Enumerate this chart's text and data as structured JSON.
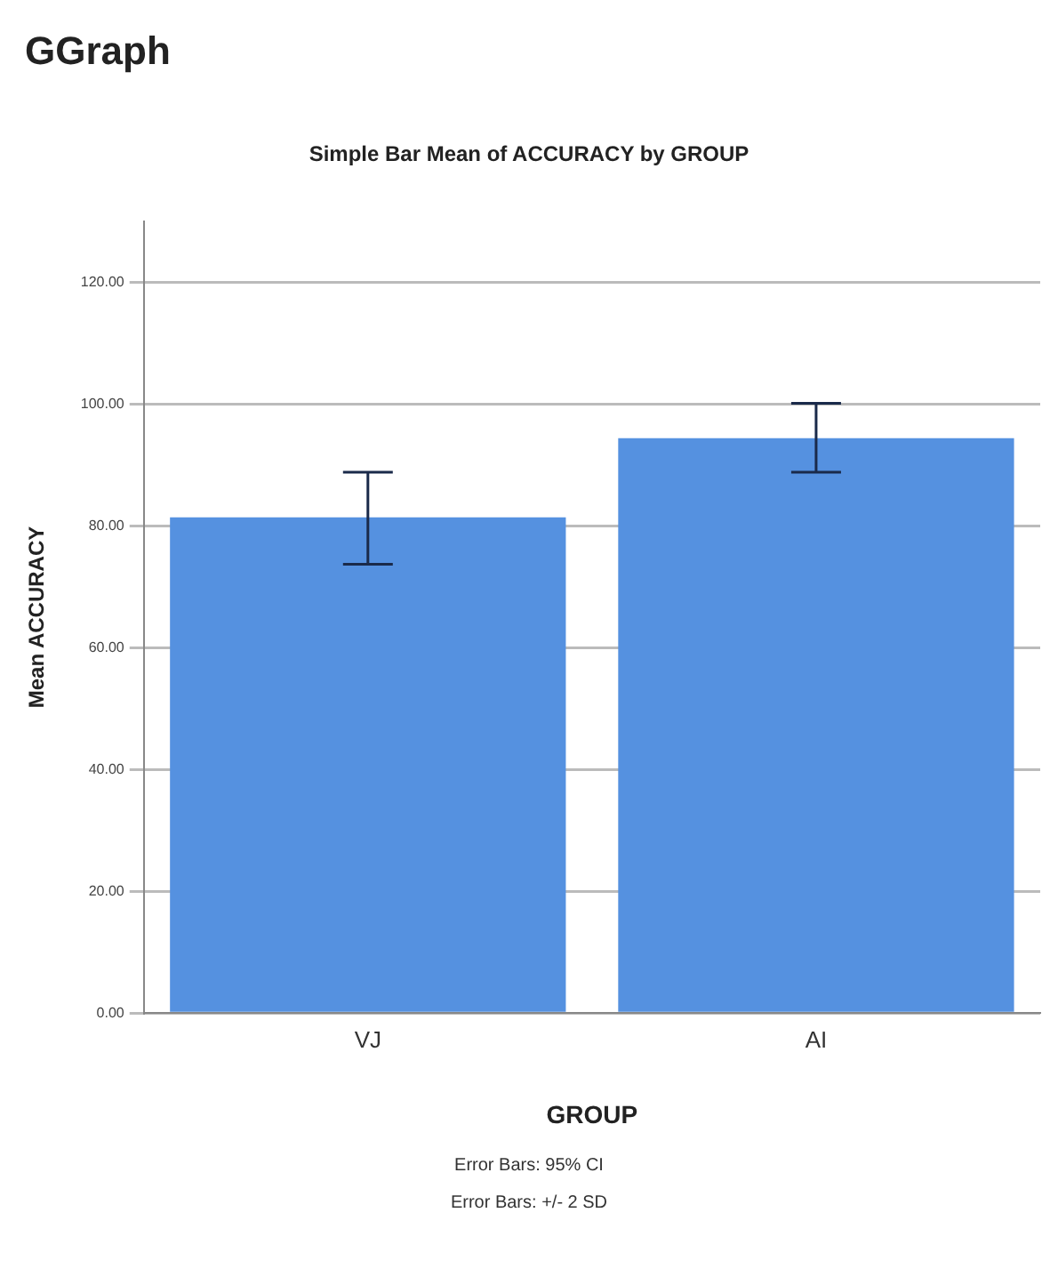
{
  "chart_data": {
    "type": "bar",
    "title": "Simple Bar Mean of ACCURACY by GROUP",
    "xlabel": "GROUP",
    "ylabel": "Mean ACCURACY",
    "categories": [
      "VJ",
      "AI"
    ],
    "values": [
      81.4,
      94.4
    ],
    "errors": [
      [
        73.7,
        88.8
      ],
      [
        88.8,
        100.1
      ]
    ],
    "color": "#5591e0",
    "ylim": [
      0,
      130
    ],
    "yticks": [
      {
        "value": 0,
        "label": "0.00"
      },
      {
        "value": 20,
        "label": "20.00"
      },
      {
        "value": 40,
        "label": "40.00"
      },
      {
        "value": 60,
        "label": "60.00"
      },
      {
        "value": 80,
        "label": "80.00"
      },
      {
        "value": 100,
        "label": "100.00"
      },
      {
        "value": 120,
        "label": "120.00"
      }
    ],
    "grid": "y",
    "annotations": [
      "GGraph",
      "Error Bars: 95% CI",
      "Error Bars: +/- 2 SD"
    ]
  }
}
